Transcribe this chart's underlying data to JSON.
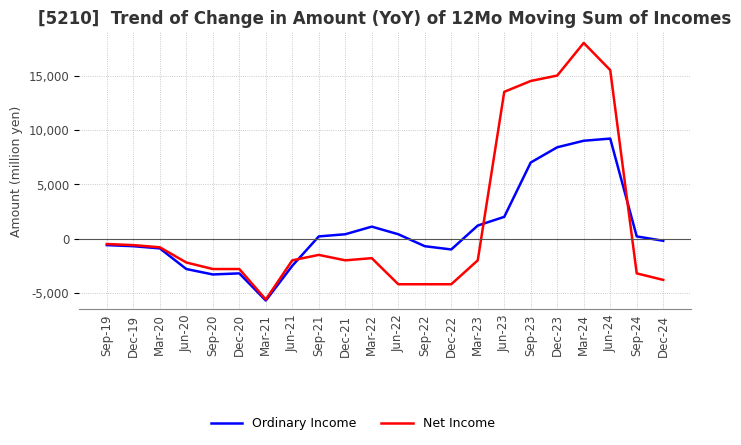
{
  "title": "[5210]  Trend of Change in Amount (YoY) of 12Mo Moving Sum of Incomes",
  "ylabel": "Amount (million yen)",
  "ylim": [
    -6500,
    19000
  ],
  "yticks": [
    -5000,
    0,
    5000,
    10000,
    15000
  ],
  "x_labels": [
    "Sep-19",
    "Dec-19",
    "Mar-20",
    "Jun-20",
    "Sep-20",
    "Dec-20",
    "Mar-21",
    "Jun-21",
    "Sep-21",
    "Dec-21",
    "Mar-22",
    "Jun-22",
    "Sep-22",
    "Dec-22",
    "Mar-23",
    "Jun-23",
    "Sep-23",
    "Dec-23",
    "Mar-24",
    "Jun-24",
    "Sep-24",
    "Dec-24"
  ],
  "ordinary_income": [
    -600,
    -700,
    -900,
    -2800,
    -3300,
    -3200,
    -5700,
    -2500,
    200,
    400,
    1100,
    400,
    -700,
    -1000,
    1200,
    2000,
    7000,
    8400,
    9000,
    9200,
    200,
    -200
  ],
  "net_income": [
    -500,
    -600,
    -800,
    -2200,
    -2800,
    -2800,
    -5600,
    -2000,
    -1500,
    -2000,
    -1800,
    -4200,
    -4200,
    -4200,
    -2000,
    13500,
    14500,
    15000,
    18000,
    15500,
    -3200,
    -3800
  ],
  "ordinary_color": "#0000ff",
  "net_color": "#ff0000",
  "grid_color": "#bbbbbb",
  "background_color": "#ffffff",
  "legend_ordinary": "Ordinary Income",
  "legend_net": "Net Income",
  "title_fontsize": 12,
  "axis_fontsize": 9,
  "tick_fontsize": 8.5
}
